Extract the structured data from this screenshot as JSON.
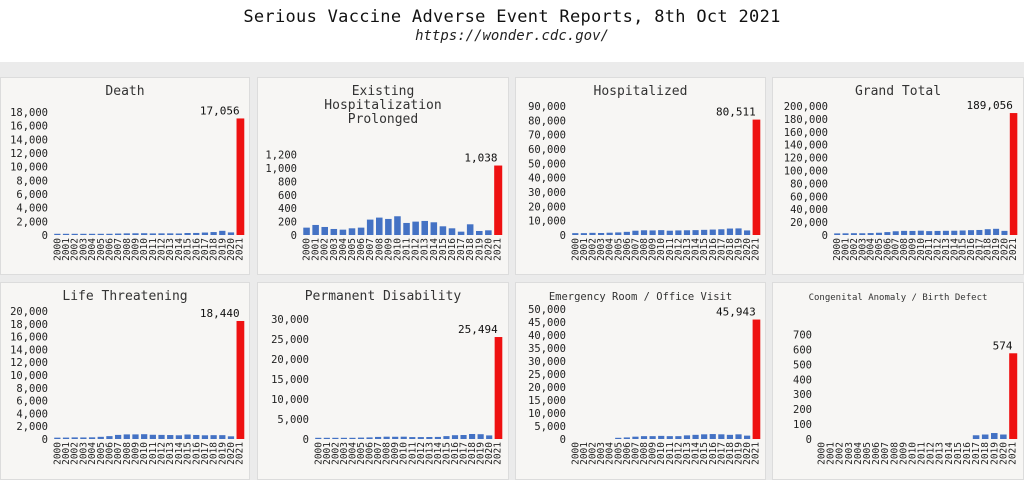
{
  "header": {
    "title": "Serious Vaccine Adverse Event Reports, 8th Oct 2021",
    "source": "https://wonder.cdc.gov/"
  },
  "colors": {
    "bar": "#4472c4",
    "highlight": "#ee1111"
  },
  "years": [
    "2000",
    "2001",
    "2002",
    "2003",
    "2004",
    "2005",
    "2006",
    "2007",
    "2008",
    "2009",
    "2010",
    "2011",
    "2012",
    "2013",
    "2014",
    "2015",
    "2016",
    "2017",
    "2018",
    "2019",
    "2020",
    "2021"
  ],
  "chart_data": [
    {
      "type": "bar",
      "title_lines": [
        "Death"
      ],
      "ylim": [
        0,
        18000
      ],
      "yticks": [
        0,
        2000,
        4000,
        6000,
        8000,
        10000,
        12000,
        14000,
        16000,
        18000
      ],
      "values": [
        140,
        150,
        160,
        130,
        170,
        160,
        180,
        210,
        240,
        250,
        260,
        230,
        240,
        240,
        220,
        290,
        300,
        360,
        430,
        610,
        380,
        17056
      ],
      "data_label": "17,056"
    },
    {
      "type": "bar",
      "title_lines": [
        "Existing",
        "Hospitalization",
        "Prolonged"
      ],
      "ylim": [
        0,
        1300
      ],
      "yticks": [
        0,
        200,
        400,
        600,
        800,
        1000,
        1200
      ],
      "values": [
        110,
        150,
        120,
        90,
        80,
        100,
        110,
        230,
        260,
        240,
        280,
        180,
        200,
        210,
        190,
        130,
        100,
        50,
        160,
        60,
        70,
        1038
      ],
      "data_label": "1,038"
    },
    {
      "type": "bar",
      "title_lines": [
        "Hospitalized"
      ],
      "ylim": [
        0,
        90000
      ],
      "yticks": [
        0,
        10000,
        20000,
        30000,
        40000,
        50000,
        60000,
        70000,
        80000,
        90000
      ],
      "values": [
        1300,
        1300,
        1500,
        1400,
        1600,
        1800,
        2200,
        3000,
        3300,
        3200,
        3400,
        3000,
        3200,
        3300,
        3400,
        3600,
        3800,
        4000,
        4500,
        4600,
        3200,
        80511
      ],
      "data_label": "80,511"
    },
    {
      "type": "bar",
      "title_lines": [
        "Grand Total"
      ],
      "ylim": [
        0,
        200000
      ],
      "yticks": [
        0,
        20000,
        40000,
        60000,
        80000,
        100000,
        120000,
        140000,
        160000,
        180000,
        200000
      ],
      "values": [
        2500,
        2600,
        2800,
        2700,
        3000,
        3500,
        4500,
        5800,
        6400,
        6300,
        6700,
        6000,
        6300,
        6500,
        6600,
        7000,
        7500,
        7800,
        9000,
        9600,
        6400,
        189056
      ],
      "data_label": "189,056"
    },
    {
      "type": "bar",
      "title_lines": [
        "Life Threatening"
      ],
      "ylim": [
        0,
        20000
      ],
      "yticks": [
        0,
        2000,
        4000,
        6000,
        8000,
        10000,
        12000,
        14000,
        16000,
        18000,
        20000
      ],
      "values": [
        210,
        220,
        250,
        240,
        260,
        340,
        450,
        640,
        720,
        720,
        750,
        660,
        640,
        620,
        580,
        700,
        630,
        580,
        600,
        600,
        420,
        18440
      ],
      "data_label": "18,440"
    },
    {
      "type": "bar",
      "title_lines": [
        "Permanent Disability"
      ],
      "ylim": [
        0,
        32000
      ],
      "yticks": [
        0,
        5000,
        10000,
        15000,
        20000,
        25000,
        30000
      ],
      "values": [
        300,
        280,
        300,
        270,
        260,
        350,
        400,
        520,
        580,
        560,
        580,
        480,
        480,
        500,
        520,
        720,
        950,
        1000,
        1250,
        1200,
        900,
        25494
      ],
      "data_label": "25,494"
    },
    {
      "type": "bar",
      "title_lines": [
        "Emergency Room / Office Visit"
      ],
      "title_size": "small",
      "ylim": [
        0,
        50000
      ],
      "yticks": [
        0,
        5000,
        10000,
        15000,
        20000,
        25000,
        30000,
        35000,
        40000,
        45000,
        50000
      ],
      "values": [
        0,
        0,
        0,
        0,
        0,
        200,
        600,
        900,
        1100,
        1100,
        1200,
        1100,
        1100,
        1400,
        1600,
        1800,
        1900,
        1800,
        1600,
        1800,
        1300,
        45943
      ],
      "data_label": "45,943"
    },
    {
      "type": "bar",
      "title_lines": [
        "Congenital Anomaly / Birth Defect"
      ],
      "title_size": "tiny",
      "ylim": [
        0,
        750
      ],
      "yticks": [
        0,
        100,
        200,
        300,
        400,
        500,
        600,
        700
      ],
      "values": [
        0,
        0,
        0,
        0,
        0,
        0,
        0,
        0,
        0,
        0,
        0,
        0,
        0,
        0,
        0,
        0,
        0,
        25,
        30,
        40,
        30,
        574
      ],
      "data_label": "574"
    }
  ]
}
